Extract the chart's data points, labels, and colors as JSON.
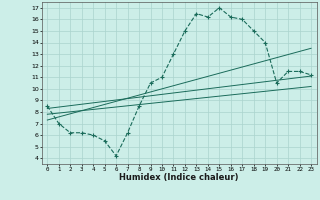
{
  "xlabel": "Humidex (Indice chaleur)",
  "background_color": "#cceee8",
  "grid_color": "#aad4ce",
  "line_color": "#1a6b5a",
  "xlim": [
    -0.5,
    23.5
  ],
  "ylim": [
    3.5,
    17.5
  ],
  "xticks": [
    0,
    1,
    2,
    3,
    4,
    5,
    6,
    7,
    8,
    9,
    10,
    11,
    12,
    13,
    14,
    15,
    16,
    17,
    18,
    19,
    20,
    21,
    22,
    23
  ],
  "yticks": [
    4,
    5,
    6,
    7,
    8,
    9,
    10,
    11,
    12,
    13,
    14,
    15,
    16,
    17
  ],
  "curve1_x": [
    0,
    1,
    2,
    3,
    4,
    5,
    6,
    7,
    8,
    9,
    10,
    11,
    12,
    13,
    14,
    15,
    16,
    17,
    18,
    19,
    20,
    21,
    22,
    23
  ],
  "curve1_y": [
    8.5,
    7.0,
    6.2,
    6.2,
    6.0,
    5.5,
    4.2,
    6.2,
    8.5,
    10.5,
    11.0,
    13.0,
    15.0,
    16.5,
    16.2,
    17.0,
    16.2,
    16.0,
    15.0,
    14.0,
    10.5,
    11.5,
    11.5,
    11.2
  ],
  "line1_x": [
    0,
    23
  ],
  "line1_y": [
    8.3,
    11.1
  ],
  "line2_x": [
    0,
    23
  ],
  "line2_y": [
    7.8,
    10.2
  ],
  "line3_x": [
    0,
    23
  ],
  "line3_y": [
    7.3,
    13.5
  ],
  "figwidth": 3.2,
  "figheight": 2.0,
  "dpi": 100
}
